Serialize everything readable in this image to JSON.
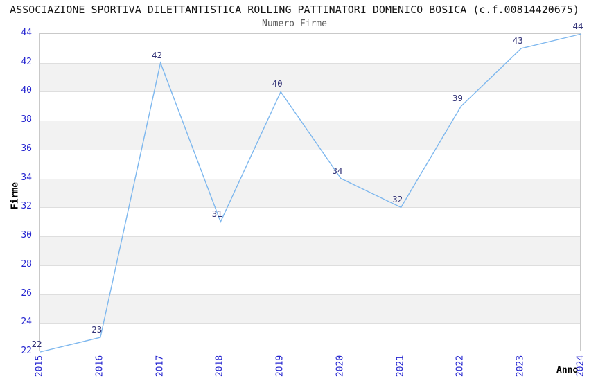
{
  "chart_data": {
    "type": "line",
    "title": "ASSOCIAZIONE SPORTIVA DILETTANTISTICA ROLLING PATTINATORI DOMENICO BOSICA (c.f.00814420675)",
    "subtitle": "Numero Firme",
    "xlabel": "Anno",
    "ylabel": "Firme",
    "x": [
      "2015",
      "2016",
      "2017",
      "2018",
      "2019",
      "2020",
      "2021",
      "2022",
      "2023",
      "2024"
    ],
    "values": [
      22,
      23,
      42,
      31,
      40,
      34,
      32,
      39,
      43,
      44
    ],
    "ylim": [
      22,
      44
    ],
    "ytick_step": 2,
    "yticks": [
      22,
      24,
      26,
      28,
      30,
      32,
      34,
      36,
      38,
      40,
      42,
      44
    ],
    "grid": "horizontal, alternating shaded bands",
    "legend": "none",
    "data_labels_shown": true,
    "colors": {
      "line": "#7db7ee",
      "tick": "#2525d0",
      "dlabel": "#333377",
      "band": "#f2f2f2",
      "gridline": "#dedede",
      "border": "#c9c9c9",
      "title_text": "#161616",
      "subtitle_text": "#5a5a5a",
      "axis_label_text": "#000000"
    }
  }
}
